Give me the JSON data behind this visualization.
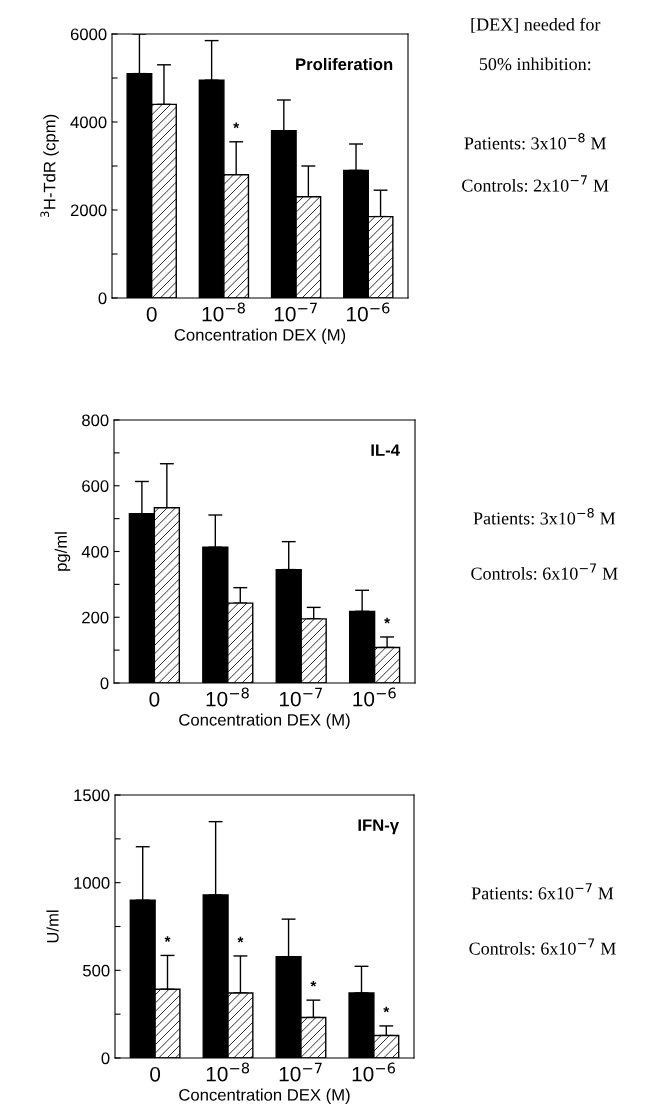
{
  "chart_data": [
    {
      "type": "bar",
      "title": "Proliferation",
      "xlabel": "Concentration DEX (M)",
      "ylabel": "$^{3}$H-TdR (cpm)",
      "categories": [
        "0",
        "10$^{−8}$",
        "10$^{−7}$",
        "10$^{−6}$"
      ],
      "series": [
        {
          "color": "#000000",
          "values": [
            5100,
            4950,
            3800,
            2900
          ],
          "errors": [
            [
              5100,
              6000
            ],
            [
              4950,
              5850
            ],
            [
              3800,
              4500
            ],
            [
              2900,
              3500
            ]
          ]
        },
        {
          "color": "#ffffff",
          "values": [
            4400,
            2800,
            2300,
            1850
          ],
          "errors": [
            [
              4400,
              5300
            ],
            [
              2800,
              3550
            ],
            [
              2300,
              3000
            ],
            [
              1850,
              2450
            ]
          ]
        }
      ],
      "ylim": [
        0,
        6000
      ],
      "yticks": [
        0,
        {
          "value": 1000,
          "label": null
        },
        2000,
        {
          "value": 3000,
          "label": null
        },
        4000,
        {
          "value": 5000,
          "label": null
        },
        6000
      ],
      "annotations": [
        {
          "text": "*",
          "x": "10$^{−8}$",
          "y": 3550
        },
        "[DEX] needed for",
        "50% inhibition:",
        "Patients: 3x10$^{−8}$ M",
        "Controls: 2x10$^{−7}$ M"
      ]
    },
    {
      "type": "bar",
      "title": "IL-4",
      "xlabel": "Concentration DEX (M)",
      "ylabel": "pg/ml",
      "categories": [
        "0",
        "10$^{−8}$",
        "10$^{−7}$",
        "10$^{−6}$"
      ],
      "series": [
        {
          "color": "#000000",
          "values": [
            515,
            413,
            345,
            218
          ],
          "errors": [
            [
              515,
              613
            ],
            [
              413,
              511
            ],
            [
              345,
              430
            ],
            [
              218,
              282
            ]
          ]
        },
        {
          "color": "#ffffff",
          "values": [
            533,
            243,
            195,
            108
          ],
          "errors": [
            [
              533,
              667
            ],
            [
              243,
              290
            ],
            [
              195,
              230
            ],
            [
              108,
              140
            ]
          ]
        }
      ],
      "ylim": [
        0,
        800
      ],
      "yticks": [
        0,
        {
          "value": 100,
          "label": null
        },
        200,
        {
          "value": 300,
          "label": null
        },
        400,
        {
          "value": 500,
          "label": null
        },
        600,
        {
          "value": 700,
          "label": null
        },
        800
      ],
      "annotations": [
        {
          "text": "*",
          "x": "10$^{−6}$",
          "y": 140
        },
        "Patients: 3x10$^{−8}$ M",
        "Controls: 6x10$^{−7}$ M"
      ]
    },
    {
      "type": "bar",
      "title": "IFN-γ",
      "xlabel": "Concentration DEX (M)",
      "ylabel": "U/ml",
      "categories": [
        "0",
        "10$^{−8}$",
        "10$^{−7}$",
        "10$^{−6}$"
      ],
      "series": [
        {
          "color": "#000000",
          "values": [
            900,
            930,
            578,
            371
          ],
          "errors": [
            [
              900,
              1205
            ],
            [
              930,
              1348
            ],
            [
              578,
              792
            ],
            [
              371,
              523
            ]
          ]
        },
        {
          "color": "#ffffff",
          "values": [
            392,
            371,
            231,
            128
          ],
          "errors": [
            [
              392,
              585
            ],
            [
              371,
              582
            ],
            [
              231,
              330
            ],
            [
              128,
              183
            ]
          ]
        }
      ],
      "ylim": [
        0,
        1500
      ],
      "yticks": [
        0,
        {
          "value": 250,
          "label": null
        },
        500,
        {
          "value": 750,
          "label": null
        },
        1000,
        {
          "value": 1250,
          "label": null
        },
        1500
      ],
      "annotations": [
        {
          "text": "*",
          "x": "0",
          "y": 585
        },
        {
          "text": "*",
          "x": "10$^{−8}$",
          "y": 582
        },
        {
          "text": "*",
          "x": "10$^{−7}$",
          "y": 330
        },
        {
          "text": "*",
          "x": "10$^{−6}$",
          "y": 183
        },
        "Patients: 6x10$^{−7}$ M",
        "Controls: 6x10$^{−7}$ M"
      ]
    }
  ]
}
